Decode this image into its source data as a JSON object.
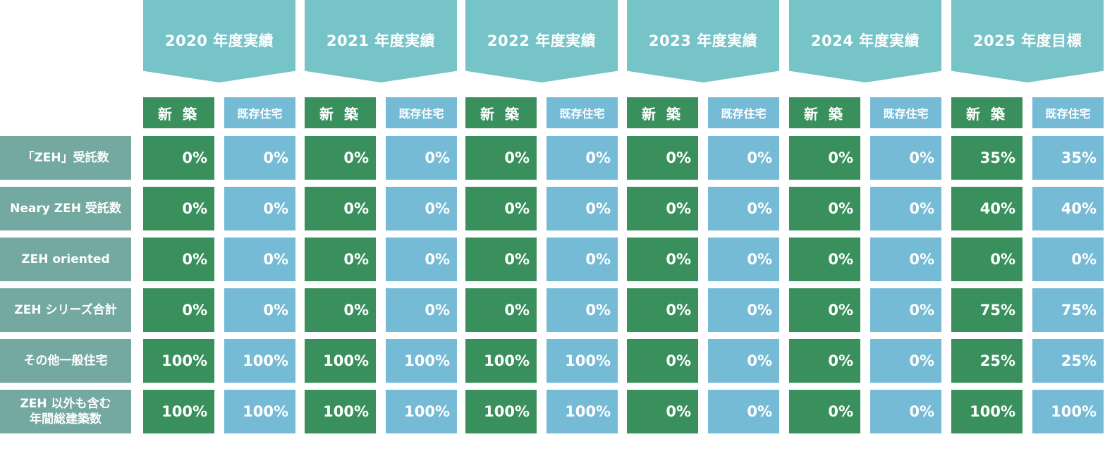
{
  "colors": {
    "banner": "#76c3c8",
    "new_build": "#3a905d",
    "existing_home": "#76bbd6",
    "row_label": "#74a9a1",
    "text": "#ffffff"
  },
  "years": [
    "2020 年度実績",
    "2021 年度実績",
    "2022 年度実績",
    "2023 年度実績",
    "2024 年度実績",
    "2025 年度目標"
  ],
  "column_headers": {
    "new": "新 築",
    "existing": "既存住宅"
  },
  "rows": [
    {
      "label": "「ZEH」受託数",
      "values": [
        "0%",
        "0%",
        "0%",
        "0%",
        "0%",
        "0%",
        "0%",
        "0%",
        "0%",
        "0%",
        "35%",
        "35%"
      ]
    },
    {
      "label": "Neary ZEH 受託数",
      "values": [
        "0%",
        "0%",
        "0%",
        "0%",
        "0%",
        "0%",
        "0%",
        "0%",
        "0%",
        "0%",
        "40%",
        "40%"
      ]
    },
    {
      "label": "ZEH oriented",
      "values": [
        "0%",
        "0%",
        "0%",
        "0%",
        "0%",
        "0%",
        "0%",
        "0%",
        "0%",
        "0%",
        "0%",
        "0%"
      ]
    },
    {
      "label": "ZEH シリーズ合計",
      "values": [
        "0%",
        "0%",
        "0%",
        "0%",
        "0%",
        "0%",
        "0%",
        "0%",
        "0%",
        "0%",
        "75%",
        "75%"
      ]
    },
    {
      "label": "その他一般住宅",
      "values": [
        "100%",
        "100%",
        "100%",
        "100%",
        "100%",
        "100%",
        "0%",
        "0%",
        "0%",
        "0%",
        "25%",
        "25%"
      ]
    },
    {
      "label": "ZEH 以外も含む\n年間総建築数",
      "values": [
        "100%",
        "100%",
        "100%",
        "100%",
        "100%",
        "100%",
        "0%",
        "0%",
        "0%",
        "0%",
        "100%",
        "100%"
      ]
    }
  ]
}
